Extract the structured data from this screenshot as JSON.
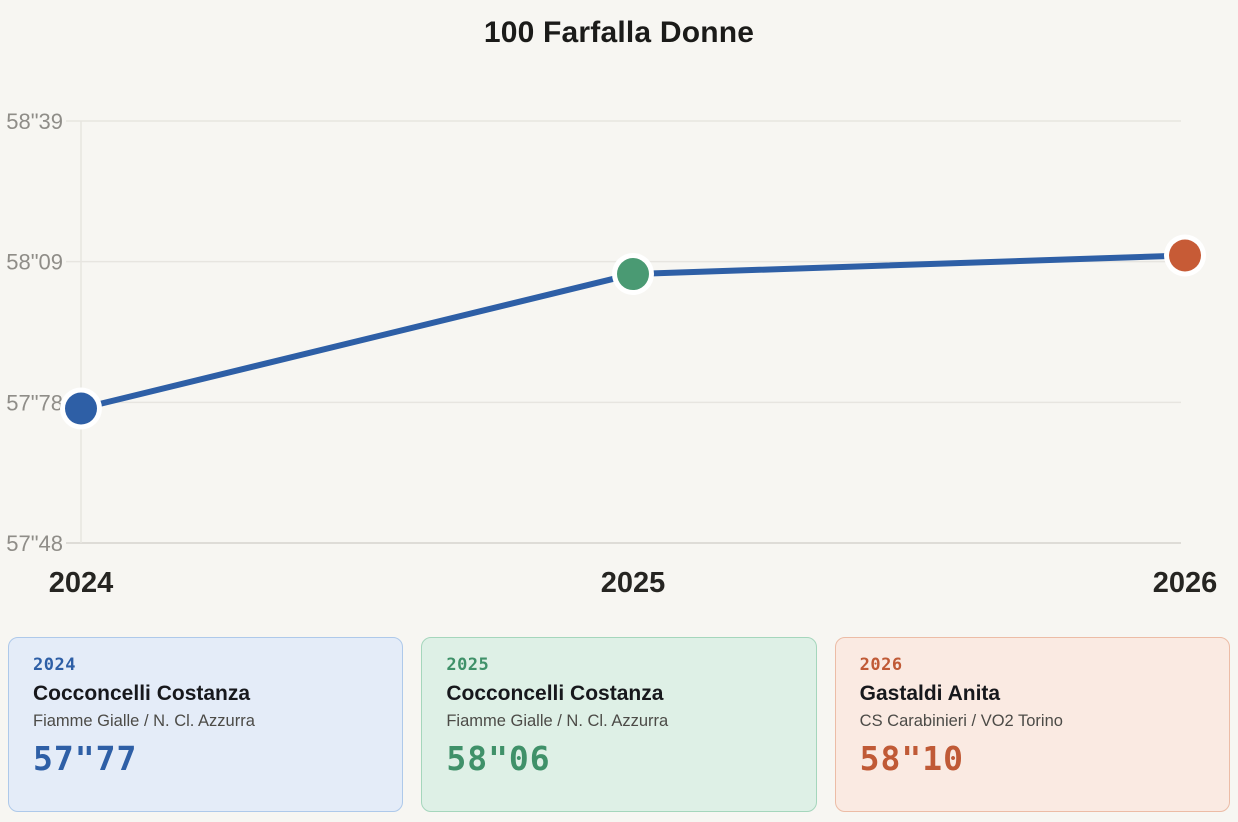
{
  "title": "100 Farfalla Donne",
  "chart_data": {
    "type": "line",
    "title": "100 Farfalla Donne",
    "x": [
      "2024",
      "2025",
      "2026"
    ],
    "values": [
      57.77,
      58.06,
      58.1
    ],
    "value_labels": [
      "57\"77",
      "58\"06",
      "58\"10"
    ],
    "y_ticks": [
      "58\"39",
      "58\"09",
      "57\"78",
      "57\"48"
    ],
    "ylim": [
      57.48,
      58.39
    ],
    "xlabel": "",
    "ylabel": "",
    "grid": "horizontal",
    "legend": "none",
    "line_color": "#2e5fa6",
    "point_colors": [
      "#2e5fa6",
      "#4a9a73",
      "#c75b36"
    ],
    "point_halo_color": "#ffffff"
  },
  "cards": [
    {
      "year": "2024",
      "name": "Cocconcelli Costanza",
      "team": "Fiamme Gialle / N. Cl. Azzurra",
      "time": "57\"77",
      "accent": "#2e5fa6",
      "bg": "#e4ecf8",
      "border": "#aec9ea"
    },
    {
      "year": "2025",
      "name": "Cocconcelli Costanza",
      "team": "Fiamme Gialle / N. Cl. Azzurra",
      "time": "58\"06",
      "accent": "#3f9169",
      "bg": "#def0e6",
      "border": "#a5d6bc"
    },
    {
      "year": "2026",
      "name": "Gastaldi Anita",
      "team": "CS Carabinieri / VO2 Torino",
      "time": "58\"10",
      "accent": "#c05a36",
      "bg": "#faeae2",
      "border": "#ecbca6"
    }
  ]
}
